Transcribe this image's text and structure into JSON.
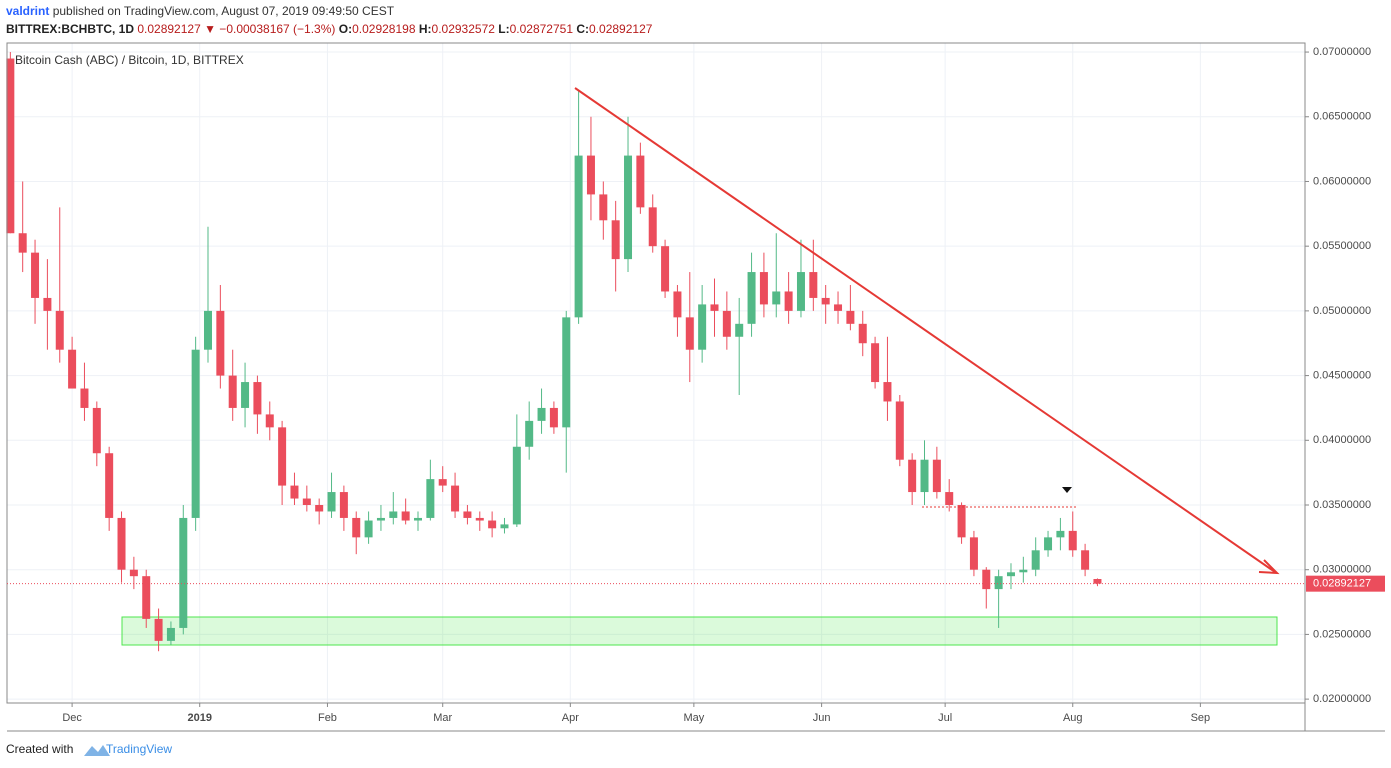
{
  "header": {
    "author": "valdrint",
    "published": "published on TradingView.com, August 07, 2019 09:49:50 CEST",
    "symbol": "BITTREX:BCHBTC, 1D",
    "change": "▼ −0.00038167 (−1.3%)",
    "ohlc_labels": [
      "O:",
      "H:",
      "L:",
      "C:"
    ]
  },
  "footer": {
    "created": "Created with",
    "brand": "TradingView"
  },
  "chart_data": {
    "type": "candlestick",
    "title": "Bitcoin Cash (ABC) / Bitcoin, 1D, BITTREX",
    "up_color": "#53b987",
    "down_color": "#eb4d5c",
    "grid": true,
    "open": [
      0.0695,
      0.056,
      0.0545,
      0.051,
      0.05,
      0.047,
      0.044,
      0.0425,
      0.039,
      0.034,
      0.03,
      0.0295,
      0.0262,
      0.0245,
      0.0255,
      0.034,
      0.047,
      0.05,
      0.045,
      0.0425,
      0.0445,
      0.042,
      0.041,
      0.0365,
      0.0355,
      0.035,
      0.0345,
      0.036,
      0.034,
      0.0325,
      0.0338,
      0.034,
      0.0345,
      0.0338,
      0.034,
      0.037,
      0.0365,
      0.0345,
      0.034,
      0.0338,
      0.0332,
      0.0335,
      0.0395,
      0.0415,
      0.0425,
      0.041,
      0.0495,
      0.062,
      0.059,
      0.057,
      0.054,
      0.062,
      0.058,
      0.055,
      0.0515,
      0.0495,
      0.047,
      0.0505,
      0.05,
      0.048,
      0.049,
      0.053,
      0.0505,
      0.0515,
      0.05,
      0.053,
      0.051,
      0.0505,
      0.05,
      0.049,
      0.0475,
      0.0445,
      0.043,
      0.0385,
      0.036,
      0.0385,
      0.036,
      0.035,
      0.0325,
      0.03,
      0.0285,
      0.0295,
      0.0298,
      0.03,
      0.0315,
      0.0325,
      0.033,
      0.0315,
      0.02928198
    ],
    "high": [
      0.07,
      0.06,
      0.0555,
      0.054,
      0.058,
      0.048,
      0.046,
      0.043,
      0.0395,
      0.0345,
      0.031,
      0.03,
      0.027,
      0.026,
      0.035,
      0.048,
      0.0565,
      0.052,
      0.047,
      0.046,
      0.045,
      0.043,
      0.0415,
      0.0375,
      0.0365,
      0.0355,
      0.0375,
      0.0365,
      0.0345,
      0.0345,
      0.035,
      0.036,
      0.0355,
      0.0345,
      0.0385,
      0.038,
      0.0375,
      0.035,
      0.0345,
      0.0345,
      0.034,
      0.042,
      0.043,
      0.044,
      0.043,
      0.05,
      0.067,
      0.065,
      0.06,
      0.0585,
      0.065,
      0.063,
      0.059,
      0.0555,
      0.052,
      0.053,
      0.052,
      0.0525,
      0.0515,
      0.051,
      0.0545,
      0.0545,
      0.056,
      0.053,
      0.0555,
      0.0555,
      0.052,
      0.0515,
      0.052,
      0.05,
      0.048,
      0.048,
      0.0435,
      0.039,
      0.04,
      0.0395,
      0.037,
      0.0352,
      0.033,
      0.0302,
      0.03,
      0.0305,
      0.031,
      0.0325,
      0.033,
      0.034,
      0.0345,
      0.032,
      0.02932572
    ],
    "low": [
      0.056,
      0.053,
      0.049,
      0.047,
      0.046,
      0.044,
      0.0415,
      0.038,
      0.033,
      0.029,
      0.0285,
      0.0255,
      0.0237,
      0.0242,
      0.025,
      0.033,
      0.046,
      0.044,
      0.0415,
      0.041,
      0.0405,
      0.04,
      0.035,
      0.035,
      0.0345,
      0.0335,
      0.034,
      0.033,
      0.0312,
      0.032,
      0.033,
      0.0335,
      0.0335,
      0.033,
      0.0338,
      0.036,
      0.034,
      0.0335,
      0.033,
      0.0325,
      0.0328,
      0.0333,
      0.0385,
      0.0405,
      0.0405,
      0.0375,
      0.049,
      0.057,
      0.0555,
      0.0515,
      0.053,
      0.0575,
      0.0545,
      0.051,
      0.048,
      0.0445,
      0.046,
      0.048,
      0.047,
      0.0435,
      0.048,
      0.0495,
      0.0495,
      0.049,
      0.0495,
      0.05,
      0.049,
      0.049,
      0.0485,
      0.0465,
      0.044,
      0.0415,
      0.038,
      0.035,
      0.035,
      0.0355,
      0.0345,
      0.032,
      0.0295,
      0.027,
      0.0255,
      0.0285,
      0.029,
      0.0295,
      0.031,
      0.0315,
      0.031,
      0.0295,
      0.02872751
    ],
    "close": [
      0.056,
      0.0545,
      0.051,
      0.05,
      0.047,
      0.044,
      0.0425,
      0.039,
      0.034,
      0.03,
      0.0295,
      0.0262,
      0.0245,
      0.0255,
      0.034,
      0.047,
      0.05,
      0.045,
      0.0425,
      0.0445,
      0.042,
      0.041,
      0.0365,
      0.0355,
      0.035,
      0.0345,
      0.036,
      0.034,
      0.0325,
      0.0338,
      0.034,
      0.0345,
      0.0338,
      0.034,
      0.037,
      0.0365,
      0.0345,
      0.034,
      0.0338,
      0.0332,
      0.0335,
      0.0395,
      0.0415,
      0.0425,
      0.041,
      0.0495,
      0.062,
      0.059,
      0.057,
      0.054,
      0.062,
      0.058,
      0.055,
      0.0515,
      0.0495,
      0.047,
      0.0505,
      0.05,
      0.048,
      0.049,
      0.053,
      0.0505,
      0.0515,
      0.05,
      0.053,
      0.051,
      0.0505,
      0.05,
      0.049,
      0.0475,
      0.0445,
      0.043,
      0.0385,
      0.036,
      0.0385,
      0.036,
      0.035,
      0.0325,
      0.03,
      0.0285,
      0.0295,
      0.0298,
      0.03,
      0.0315,
      0.0325,
      0.033,
      0.0315,
      0.03,
      0.02892127
    ],
    "ylim": [
      0.0197,
      0.0707
    ],
    "yticks": [
      {
        "value": 0.02,
        "label": "0.02000000"
      },
      {
        "value": 0.025,
        "label": "0.02500000"
      },
      {
        "value": 0.03,
        "label": "0.03000000"
      },
      {
        "value": 0.035,
        "label": "0.03500000"
      },
      {
        "value": 0.04,
        "label": "0.04000000"
      },
      {
        "value": 0.045,
        "label": "0.04500000"
      },
      {
        "value": 0.05,
        "label": "0.05000000"
      },
      {
        "value": 0.055,
        "label": "0.05500000"
      },
      {
        "value": 0.06,
        "label": "0.06000000"
      },
      {
        "value": 0.065,
        "label": "0.06500000"
      },
      {
        "value": 0.07,
        "label": "0.07000000"
      }
    ],
    "xlim": [
      -0.27,
      104.8
    ],
    "xticks": [
      {
        "value": 5,
        "label": "Dec"
      },
      {
        "value": 15.33,
        "label": "2019"
      },
      {
        "value": 25.67,
        "label": "Feb"
      },
      {
        "value": 35,
        "label": "Mar"
      },
      {
        "value": 45.33,
        "label": "Apr"
      },
      {
        "value": 55.33,
        "label": "May"
      },
      {
        "value": 65.67,
        "label": "Jun"
      },
      {
        "value": 75.67,
        "label": "Jul"
      },
      {
        "value": 86,
        "label": "Aug"
      },
      {
        "value": 96.33,
        "label": "Sep"
      }
    ]
  }
}
